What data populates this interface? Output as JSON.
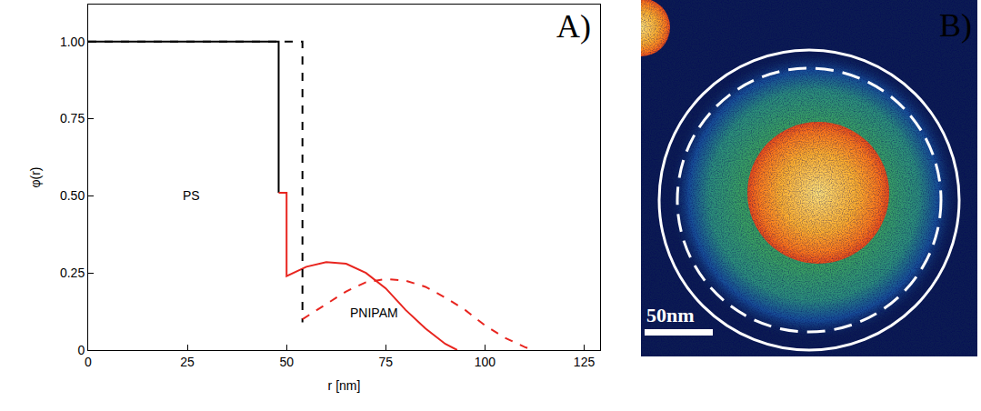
{
  "chart_data": {
    "type": "line",
    "panel_label": "A)",
    "x_label": "r [nm]",
    "y_label": "φ(r)",
    "xlim": [
      0,
      129
    ],
    "xticks": [
      0,
      25,
      50,
      75,
      100,
      125
    ],
    "ylim": [
      0,
      1.12
    ],
    "yticks": [
      0,
      0.25,
      {
        "value": 0.5,
        "label": "0.50"
      },
      0.75,
      {
        "value": 1,
        "label": "1.00"
      }
    ],
    "grid": false,
    "annotations": [
      {
        "text": "PS",
        "x": 26,
        "y": 0.5
      },
      {
        "text": "PNIPAM",
        "x": 72,
        "y": 0.12
      }
    ],
    "series": [
      {
        "color": "#000000",
        "line_style": "solid",
        "x": [
          0,
          48,
          48
        ],
        "values": [
          1,
          1,
          0.51
        ]
      },
      {
        "color": "#e8251f",
        "line_style": "solid",
        "x": [
          48,
          50,
          50,
          55,
          60,
          65,
          70,
          75,
          80,
          85,
          90,
          93
        ],
        "values": [
          0.51,
          0.51,
          0.24,
          0.27,
          0.285,
          0.28,
          0.25,
          0.2,
          0.13,
          0.07,
          0.02,
          0
        ]
      },
      {
        "color": "#000000",
        "line_style": "dash",
        "x": [
          0,
          54,
          54
        ],
        "values": [
          1,
          1,
          0.09
        ]
      },
      {
        "color": "#e8251f",
        "line_style": "dash",
        "x": [
          54,
          60,
          65,
          70,
          75,
          80,
          85,
          90,
          95,
          100,
          105,
          110,
          112
        ],
        "values": [
          0.1,
          0.15,
          0.19,
          0.22,
          0.23,
          0.225,
          0.205,
          0.17,
          0.13,
          0.08,
          0.04,
          0.01,
          0
        ]
      }
    ]
  },
  "panel_b": {
    "label": "B)",
    "scale_bar_label": "50nm"
  }
}
